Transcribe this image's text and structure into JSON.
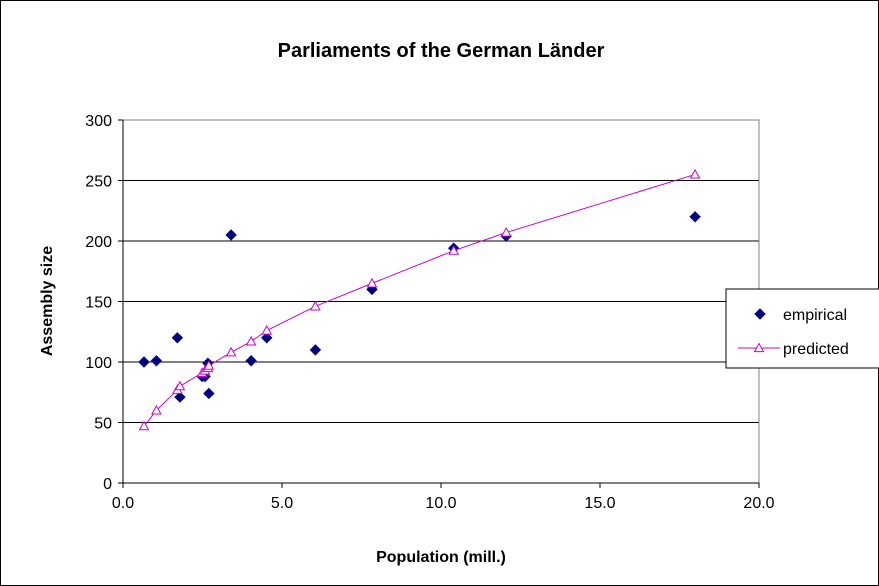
{
  "chart_data": {
    "type": "scatter",
    "title": "Parliaments of the German Länder",
    "xlabel": "Population (mill.)",
    "ylabel": "Assembly size",
    "xlim": [
      0,
      20
    ],
    "ylim": [
      0,
      300
    ],
    "xticks": [
      "0.0",
      "5.0",
      "10.0",
      "15.0",
      "20.0"
    ],
    "xtick_values": [
      0,
      5,
      10,
      15,
      20
    ],
    "yticks": [
      "0",
      "50",
      "100",
      "150",
      "200",
      "250",
      "300"
    ],
    "ytick_values": [
      0,
      50,
      100,
      150,
      200,
      250,
      300
    ],
    "grid": "horizontal",
    "legend_position": "right",
    "series": [
      {
        "name": "empirical",
        "style": "markers",
        "marker": "diamond",
        "color": "#000080",
        "points": [
          [
            0.66,
            100
          ],
          [
            1.05,
            101
          ],
          [
            1.71,
            120
          ],
          [
            1.79,
            71
          ],
          [
            2.49,
            88
          ],
          [
            2.58,
            88
          ],
          [
            2.67,
            99
          ],
          [
            2.7,
            74
          ],
          [
            3.4,
            205
          ],
          [
            4.03,
            101
          ],
          [
            4.52,
            120
          ],
          [
            6.05,
            110
          ],
          [
            7.83,
            160
          ],
          [
            10.4,
            194
          ],
          [
            12.05,
            204
          ],
          [
            17.99,
            220
          ]
        ]
      },
      {
        "name": "predicted",
        "style": "line-markers",
        "marker": "triangle-open",
        "color": "#cc00cc",
        "points": [
          [
            0.66,
            47
          ],
          [
            1.05,
            60
          ],
          [
            1.71,
            77
          ],
          [
            1.79,
            80
          ],
          [
            2.49,
            91
          ],
          [
            2.58,
            93
          ],
          [
            2.67,
            95
          ],
          [
            2.7,
            97
          ],
          [
            3.4,
            108
          ],
          [
            4.03,
            117
          ],
          [
            4.52,
            126
          ],
          [
            6.05,
            146
          ],
          [
            7.83,
            165
          ],
          [
            10.4,
            192
          ],
          [
            12.05,
            207
          ],
          [
            17.99,
            255
          ]
        ]
      }
    ]
  }
}
